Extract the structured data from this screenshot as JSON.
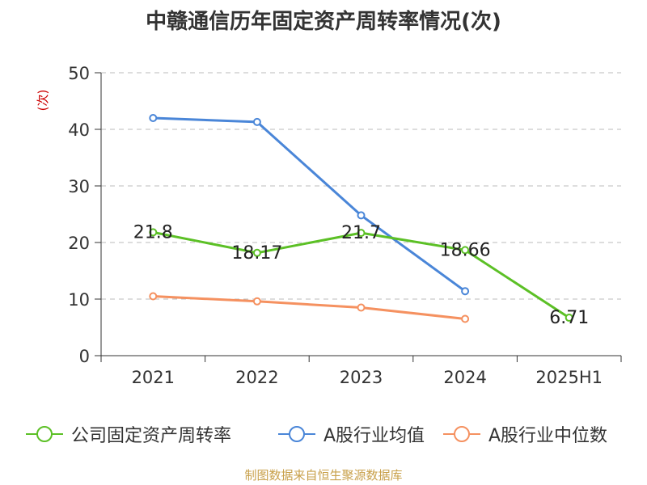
{
  "chart_data": {
    "type": "line",
    "title": "中赣通信历年固定资产周转率情况(次)",
    "ylabel": "(次)",
    "xlabel": "",
    "categories": [
      "2021",
      "2022",
      "2023",
      "2024",
      "2025H1"
    ],
    "ylim": [
      0,
      50
    ],
    "yticks": [
      0,
      10,
      20,
      30,
      40,
      50
    ],
    "grid": true,
    "legend_position": "bottom",
    "series": [
      {
        "name": "公司固定资产周转率",
        "color": "#5cc026",
        "values": [
          21.8,
          18.17,
          21.7,
          18.66,
          6.71
        ],
        "labels": [
          "21.8",
          "18.17",
          "21.7",
          "18.66",
          "6.71"
        ]
      },
      {
        "name": "A股行业均值",
        "color": "#4a86d8",
        "values": [
          42.0,
          41.3,
          24.8,
          11.4,
          null
        ]
      },
      {
        "name": "A股行业中位数",
        "color": "#f59160",
        "values": [
          10.5,
          9.6,
          8.5,
          6.5,
          null
        ]
      }
    ]
  },
  "source_text": "制图数据来自恒生聚源数据库"
}
